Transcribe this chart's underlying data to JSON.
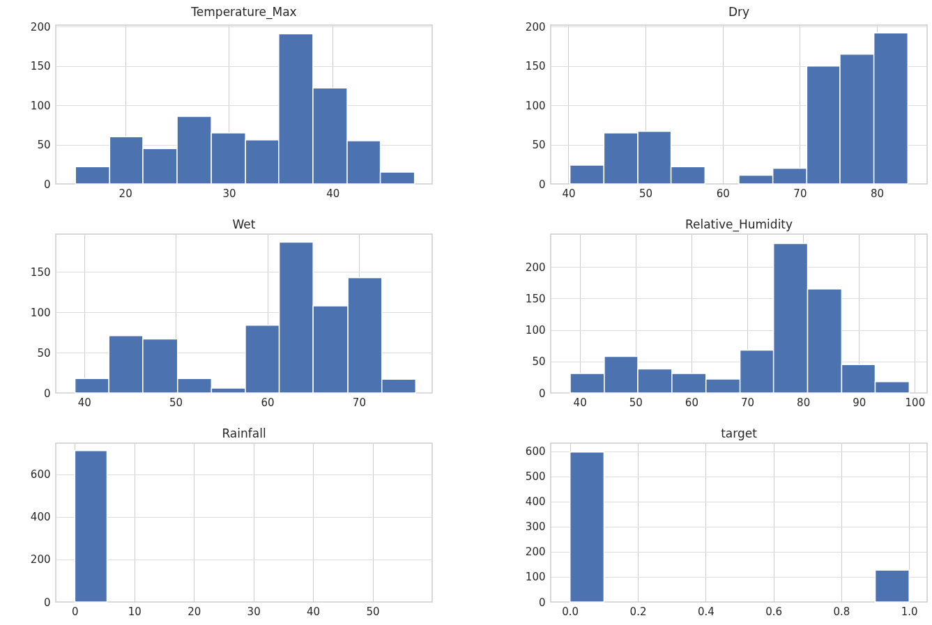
{
  "chart_data": [
    {
      "type": "histogram",
      "title": "Temperature_Max",
      "bins": [
        15.2,
        18.5,
        21.7,
        25.0,
        28.3,
        31.6,
        34.8,
        38.1,
        41.4,
        44.6,
        47.9
      ],
      "values": [
        22,
        60,
        45,
        86,
        65,
        56,
        191,
        122,
        55,
        15
      ],
      "color": "#4c72b0",
      "xlim": [
        13.3,
        49.6
      ],
      "xticks": [
        20,
        30,
        40
      ],
      "ylim": [
        0,
        202
      ],
      "yticks": [
        0,
        50,
        100,
        150,
        200
      ],
      "grid": true
    },
    {
      "type": "histogram",
      "title": "Dry",
      "bins": [
        40.2,
        44.6,
        49.0,
        53.3,
        57.7,
        62.1,
        66.5,
        70.9,
        75.2,
        79.6,
        84.0
      ],
      "values": [
        24,
        65,
        67,
        22,
        0,
        11,
        20,
        150,
        165,
        192
      ],
      "color": "#4c72b0",
      "xlim": [
        37.7,
        86.5
      ],
      "xticks": [
        40,
        50,
        60,
        70,
        80
      ],
      "ylim": [
        0,
        202
      ],
      "yticks": [
        0,
        50,
        100,
        150,
        200
      ],
      "grid": true
    },
    {
      "type": "histogram",
      "title": "Wet",
      "bins": [
        39.0,
        42.7,
        46.4,
        50.2,
        53.9,
        57.6,
        61.3,
        65.0,
        68.8,
        72.5,
        76.2
      ],
      "values": [
        18,
        71,
        67,
        18,
        6,
        84,
        187,
        108,
        143,
        17
      ],
      "color": "#4c72b0",
      "xlim": [
        36.9,
        78.0
      ],
      "xticks": [
        40,
        50,
        60,
        70
      ],
      "ylim": [
        0,
        197
      ],
      "yticks": [
        0,
        50,
        100,
        150
      ],
      "grid": true
    },
    {
      "type": "histogram",
      "title": "Relative_Humidity",
      "bins": [
        38.3,
        44.4,
        50.4,
        56.5,
        62.6,
        68.7,
        74.7,
        80.8,
        86.9,
        92.9,
        99.0
      ],
      "values": [
        31,
        58,
        38,
        31,
        22,
        68,
        237,
        165,
        45,
        18
      ],
      "color": "#4c72b0",
      "xlim": [
        34.8,
        102.2
      ],
      "xticks": [
        40,
        50,
        60,
        70,
        80,
        90,
        100
      ],
      "ylim": [
        0,
        252
      ],
      "yticks": [
        0,
        50,
        100,
        150,
        200
      ],
      "grid": true
    },
    {
      "type": "histogram",
      "title": "Rainfall",
      "bins": [
        0,
        5.4,
        10.8,
        16.2,
        21.6,
        27,
        32.4,
        37.8,
        43.2,
        48.6,
        54
      ],
      "values": [
        711,
        0,
        0,
        0,
        0,
        0,
        0,
        0,
        0,
        0
      ],
      "color": "#4c72b0",
      "xlim": [
        -3.2,
        60.0
      ],
      "xticks": [
        0,
        10,
        20,
        30,
        40,
        50
      ],
      "ylim": [
        0,
        746
      ],
      "yticks": [
        0,
        200,
        400,
        600
      ],
      "grid": true
    },
    {
      "type": "histogram",
      "title": "target",
      "bins": [
        0,
        0.1,
        0.2,
        0.3,
        0.4,
        0.5,
        0.6,
        0.7,
        0.8,
        0.9,
        1.0
      ],
      "values": [
        597,
        0,
        0,
        0,
        0,
        0,
        0,
        0,
        0,
        127
      ],
      "color": "#4c72b0",
      "xlim": [
        -0.057,
        1.053
      ],
      "xticks": [
        {
          "value": 0,
          "label": "0.0"
        },
        0.2,
        0.4,
        0.6,
        0.8,
        {
          "value": 1,
          "label": "1.0"
        }
      ],
      "ylim": [
        0,
        632
      ],
      "yticks": [
        0,
        100,
        200,
        300,
        400,
        500,
        600
      ],
      "grid": true
    }
  ]
}
